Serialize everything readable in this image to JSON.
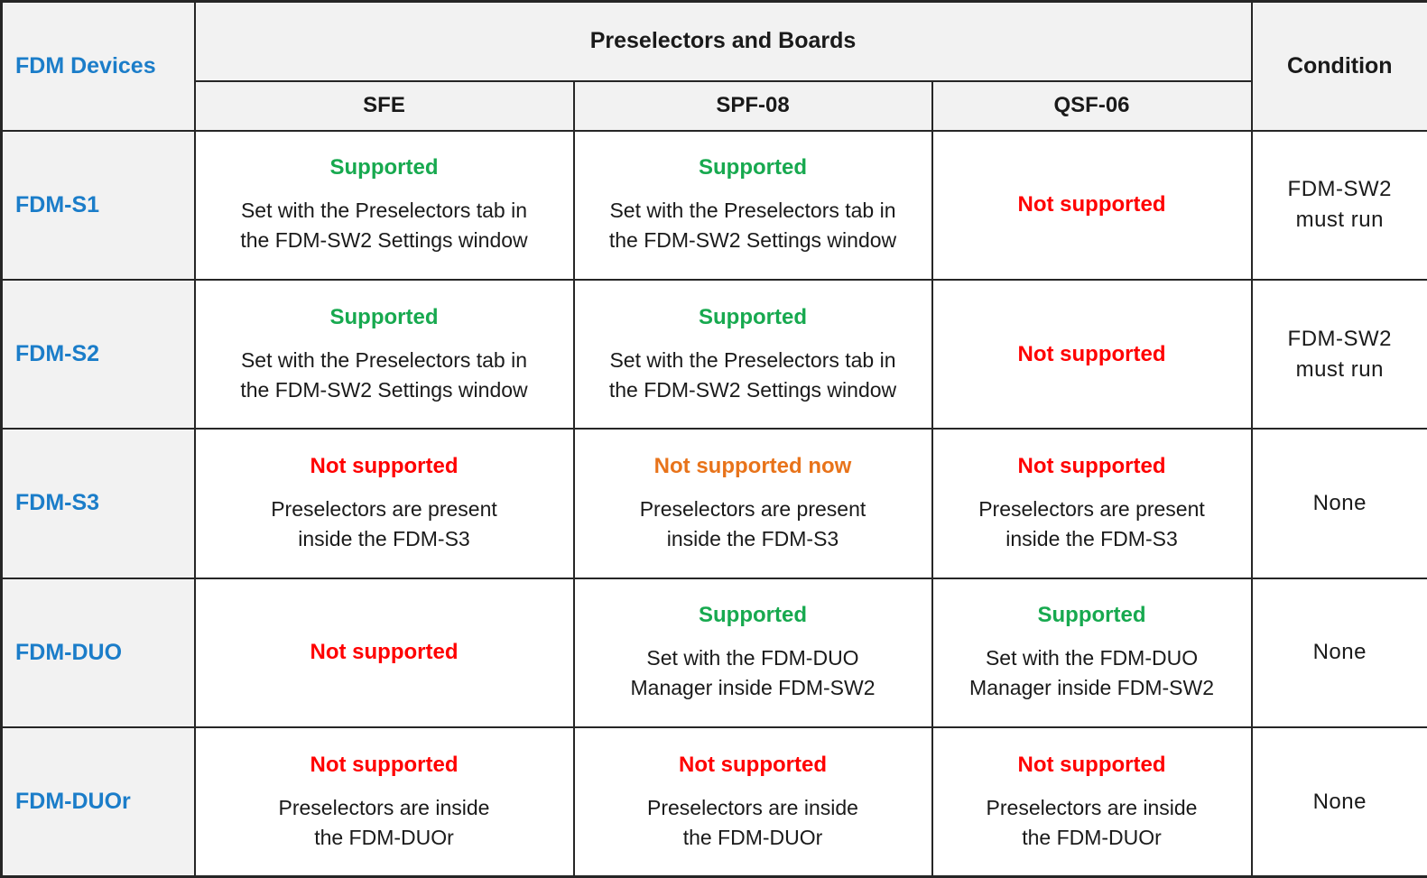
{
  "colors": {
    "green": "#17A94F",
    "red": "#FF0000",
    "orange": "#E8731A",
    "blue": "#1B7DC9",
    "border": "#262626",
    "header_bg": "#F2F2F2",
    "text": "#1A1A1A"
  },
  "header": {
    "device_col": "FDM Devices",
    "group": "Preselectors and Boards",
    "columns": [
      "SFE",
      "SPF-08",
      "QSF-06"
    ],
    "condition_col": "Condition"
  },
  "rows": [
    {
      "device": "FDM-S1",
      "cells": [
        {
          "status": "Supported",
          "color": "green",
          "note_lines": [
            "Set with the Preselectors tab in",
            "the FDM-SW2 Settings window"
          ]
        },
        {
          "status": "Supported",
          "color": "green",
          "note_lines": [
            "Set with the Preselectors tab in",
            "the FDM-SW2 Settings window"
          ]
        },
        {
          "status": "Not supported",
          "color": "red",
          "note_lines": []
        }
      ],
      "condition_lines": [
        "FDM-SW2",
        "must run"
      ]
    },
    {
      "device": "FDM-S2",
      "cells": [
        {
          "status": "Supported",
          "color": "green",
          "note_lines": [
            "Set with the Preselectors tab in",
            "the FDM-SW2 Settings window"
          ]
        },
        {
          "status": "Supported",
          "color": "green",
          "note_lines": [
            "Set with the Preselectors tab in",
            "the FDM-SW2 Settings window"
          ]
        },
        {
          "status": "Not supported",
          "color": "red",
          "note_lines": []
        }
      ],
      "condition_lines": [
        "FDM-SW2",
        "must run"
      ]
    },
    {
      "device": "FDM-S3",
      "cells": [
        {
          "status": "Not supported",
          "color": "red",
          "note_lines": [
            "Preselectors are present",
            "inside the FDM-S3"
          ]
        },
        {
          "status": "Not supported now",
          "color": "orange",
          "note_lines": [
            "Preselectors are present",
            "inside the FDM-S3"
          ]
        },
        {
          "status": "Not supported",
          "color": "red",
          "note_lines": [
            "Preselectors are present",
            "inside the FDM-S3"
          ]
        }
      ],
      "condition_lines": [
        "None"
      ]
    },
    {
      "device": "FDM-DUO",
      "cells": [
        {
          "status": "Not supported",
          "color": "red",
          "note_lines": []
        },
        {
          "status": "Supported",
          "color": "green",
          "note_lines": [
            "Set with the FDM-DUO",
            "Manager inside FDM-SW2"
          ]
        },
        {
          "status": "Supported",
          "color": "green",
          "note_lines": [
            "Set with the FDM-DUO",
            "Manager inside FDM-SW2"
          ]
        }
      ],
      "condition_lines": [
        "None"
      ]
    },
    {
      "device": "FDM-DUOr",
      "cells": [
        {
          "status": "Not supported",
          "color": "red",
          "note_lines": [
            "Preselectors are inside",
            "the FDM-DUOr"
          ]
        },
        {
          "status": "Not supported",
          "color": "red",
          "note_lines": [
            "Preselectors are inside",
            "the FDM-DUOr"
          ]
        },
        {
          "status": "Not supported",
          "color": "red",
          "note_lines": [
            "Preselectors are inside",
            "the FDM-DUOr"
          ]
        }
      ],
      "condition_lines": [
        "None"
      ]
    }
  ]
}
